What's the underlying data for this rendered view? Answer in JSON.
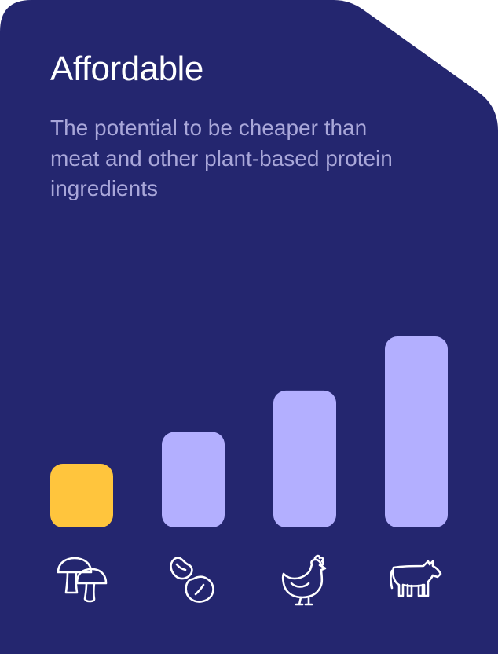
{
  "card": {
    "title": "Affordable",
    "subtitle": "The potential to be cheaper than meat and other plant-based protein ingredients",
    "colors": {
      "background": "#24266F",
      "highlight": "#FFC53D",
      "bar": "#B3AFFF",
      "subtitle": "#A9A7D9",
      "icon": "#FFFFFF"
    }
  },
  "chart_data": {
    "type": "bar",
    "categories": [
      "mushroom-icon",
      "beans-icon",
      "chicken-icon",
      "cow-icon"
    ],
    "values": [
      1,
      1.5,
      2.15,
      3.0
    ],
    "highlight_index": 0,
    "ylim": [
      0,
      3
    ],
    "grid": false,
    "title": "",
    "xlabel": "",
    "ylabel": ""
  }
}
